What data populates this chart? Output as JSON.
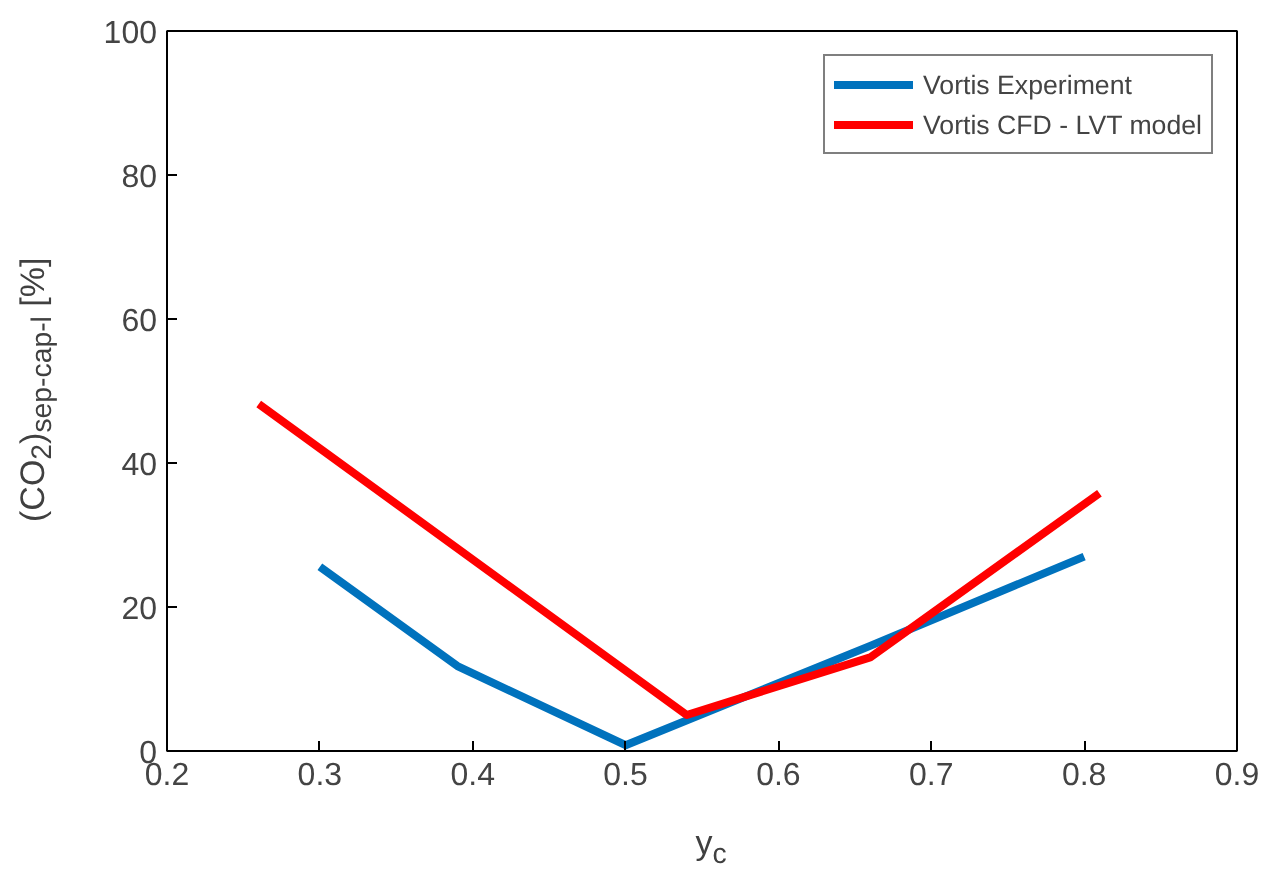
{
  "chart_data": {
    "type": "line",
    "xlabel": "y$_{c}$",
    "ylabel": "(CO$_{2}$)$_{sep-cap-l}$ [%]",
    "xlim": [
      0.2,
      0.9
    ],
    "xticks": [
      {
        "value": 0.2,
        "label": "0.2"
      },
      {
        "value": 0.3,
        "label": "0.3"
      },
      {
        "value": 0.4,
        "label": "0.4"
      },
      {
        "value": 0.5,
        "label": "0.5"
      },
      {
        "value": 0.6,
        "label": "0.6"
      },
      {
        "value": 0.7,
        "label": "0.7"
      },
      {
        "value": 0.8,
        "label": "0.8"
      },
      {
        "value": 0.9,
        "label": "0.9"
      }
    ],
    "ylim": [
      0,
      100
    ],
    "yticks": [
      0,
      20,
      40,
      60,
      80,
      100
    ],
    "grid": false,
    "legend": "top right",
    "series": [
      {
        "name": "Vortis Experiment",
        "color": "#0072bd",
        "x": [
          0.3,
          0.39,
          0.5,
          0.66,
          0.8
        ],
        "values": [
          25.6,
          11.8,
          0.8,
          14.6,
          27
        ]
      },
      {
        "name": "Vortis CFD - LVT model",
        "color": "#ff0000",
        "x": [
          0.26,
          0.54,
          0.66,
          0.81
        ],
        "values": [
          48.2,
          5,
          13,
          35.8
        ]
      }
    ]
  }
}
